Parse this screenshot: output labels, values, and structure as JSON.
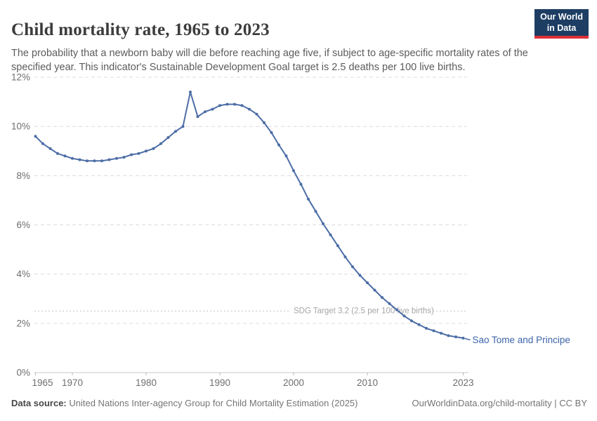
{
  "header": {
    "title": "Child mortality rate, 1965 to 2023",
    "subtitle": "The probability that a newborn baby will die before reaching age five, if subject to age-specific mortality rates of the specified year. This indicator's Sustainable Development Goal target is 2.5 deaths per 100 live births.",
    "logo": {
      "line1": "Our World",
      "line2": "in Data",
      "bg_color": "#1d3d63",
      "bar_color": "#dc3036"
    }
  },
  "chart_data": {
    "type": "line",
    "title": "Child mortality rate, 1965 to 2023",
    "xlabel": "",
    "ylabel": "",
    "ylim": [
      0,
      12
    ],
    "grid": "horizontal-dashed",
    "legend_position": "end-of-line-label",
    "x": [
      1965,
      1966,
      1967,
      1968,
      1969,
      1970,
      1971,
      1972,
      1973,
      1974,
      1975,
      1976,
      1977,
      1978,
      1979,
      1980,
      1981,
      1982,
      1983,
      1984,
      1985,
      1986,
      1987,
      1988,
      1989,
      1990,
      1991,
      1992,
      1993,
      1994,
      1995,
      1996,
      1997,
      1998,
      1999,
      2000,
      2001,
      2002,
      2003,
      2004,
      2005,
      2006,
      2007,
      2008,
      2009,
      2010,
      2011,
      2012,
      2013,
      2014,
      2015,
      2016,
      2017,
      2018,
      2019,
      2020,
      2021,
      2022,
      2023
    ],
    "series": [
      {
        "name": "Sao Tome and Principe",
        "color": "#4c6da6",
        "label_color": "#3c64a9",
        "values": [
          9.6,
          9.3,
          9.1,
          8.9,
          8.8,
          8.7,
          8.65,
          8.6,
          8.6,
          8.6,
          8.65,
          8.7,
          8.75,
          8.85,
          8.9,
          9.0,
          9.1,
          9.3,
          9.55,
          9.8,
          10.0,
          11.4,
          10.4,
          10.6,
          10.7,
          10.85,
          10.9,
          10.9,
          10.85,
          10.7,
          10.5,
          10.15,
          9.75,
          9.25,
          8.8,
          8.2,
          7.65,
          7.05,
          6.55,
          6.05,
          5.6,
          5.15,
          4.7,
          4.3,
          3.95,
          3.65,
          3.35,
          3.05,
          2.8,
          2.55,
          2.3,
          2.1,
          1.95,
          1.8,
          1.7,
          1.6,
          1.5,
          1.45,
          1.4
        ]
      }
    ],
    "yticks": [
      {
        "value": 0,
        "label": "0%"
      },
      {
        "value": 2,
        "label": "2%"
      },
      {
        "value": 4,
        "label": "4%"
      },
      {
        "value": 6,
        "label": "6%"
      },
      {
        "value": 8,
        "label": "8%"
      },
      {
        "value": 10,
        "label": "10%"
      },
      {
        "value": 12,
        "label": "12%"
      }
    ],
    "xticks": [
      {
        "value": 1965,
        "label": "1965"
      },
      {
        "value": 1970,
        "label": "1970"
      },
      {
        "value": 1980,
        "label": "1980"
      },
      {
        "value": 1990,
        "label": "1990"
      },
      {
        "value": 2000,
        "label": "2000"
      },
      {
        "value": 2010,
        "label": "2010"
      },
      {
        "value": 2023,
        "label": "2023"
      }
    ],
    "annotation": {
      "label": "SDG Target 3.2 (2.5 per 100 live births)",
      "value": 2.5
    },
    "colors": {
      "gridline": "#dcdcdc",
      "axis": "#c8c8c8",
      "tick": "#b9b9b9",
      "sdg_line": "#c2c2c2",
      "sdg_text": "#a6a6a6"
    }
  },
  "footer": {
    "source_label": "Data source:",
    "source_rest": " United Nations Inter-agency Group for Child Mortality Estimation (2025)",
    "link_text": "OurWorldinData.org/child-mortality | CC BY"
  }
}
